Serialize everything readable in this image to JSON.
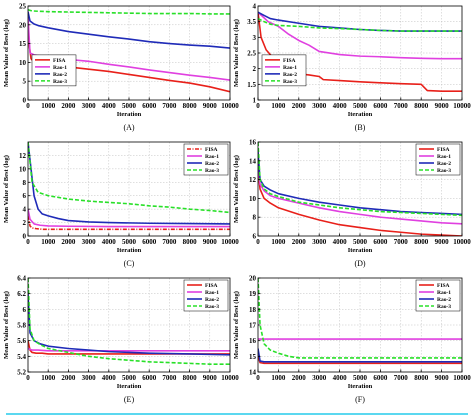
{
  "chart_data": [
    {
      "type": "line",
      "caption": "(A)",
      "xlabel": "Iteration",
      "ylabel": "Mean Value of Best (log)",
      "xlim": [
        0,
        10000
      ],
      "ylim": [
        0,
        25
      ],
      "xticks": [
        0,
        1000,
        2000,
        3000,
        4000,
        5000,
        6000,
        7000,
        8000,
        9000,
        10000
      ],
      "yticks": [
        0,
        5,
        10,
        15,
        20,
        25
      ],
      "grid": true,
      "legend_position": "left-middle",
      "series": [
        {
          "name": "FISA",
          "color": "#e8201a",
          "dash": "solid",
          "x": [
            0,
            50,
            150,
            300,
            600,
            1000,
            2000,
            3000,
            4000,
            5000,
            6000,
            7000,
            8000,
            9000,
            10000
          ],
          "y": [
            22,
            15,
            11,
            10,
            9.8,
            9.5,
            8.8,
            8.2,
            7.6,
            6.8,
            6.0,
            5.2,
            4.5,
            3.5,
            2.2
          ]
        },
        {
          "name": "Rao-1",
          "color": "#e040e0",
          "dash": "solid",
          "x": [
            0,
            100,
            300,
            600,
            1000,
            2000,
            3000,
            4000,
            5000,
            6000,
            7000,
            8000,
            9000,
            10000
          ],
          "y": [
            22,
            12.5,
            12,
            11.8,
            11.5,
            10.8,
            10.3,
            9.5,
            8.8,
            8.0,
            7.3,
            6.6,
            6.0,
            5.3
          ]
        },
        {
          "name": "Rao-2",
          "color": "#1f2bb8",
          "dash": "solid",
          "x": [
            0,
            100,
            300,
            500,
            1000,
            2000,
            3000,
            4000,
            5000,
            6000,
            7000,
            8000,
            9000,
            10000
          ],
          "y": [
            23.5,
            21,
            20.2,
            19.8,
            19.2,
            18.2,
            17.5,
            16.8,
            16.2,
            15.5,
            15.0,
            14.6,
            14.3,
            13.8
          ]
        },
        {
          "name": "Rao-3",
          "color": "#28e028",
          "dash": "dashed",
          "x": [
            0,
            200,
            500,
            1000,
            2000,
            3000,
            4000,
            5000,
            6000,
            7000,
            8000,
            9000,
            10000
          ],
          "y": [
            24,
            23.7,
            23.6,
            23.5,
            23.4,
            23.3,
            23.2,
            23.1,
            23.0,
            23.0,
            23.0,
            22.9,
            22.9
          ]
        }
      ]
    },
    {
      "type": "line",
      "caption": "(B)",
      "xlabel": "Iteration",
      "ylabel": "Mean Value of Best (log)",
      "xlim": [
        0,
        10000
      ],
      "ylim": [
        1,
        4
      ],
      "xticks": [
        0,
        1000,
        2000,
        3000,
        4000,
        5000,
        6000,
        7000,
        8000,
        9000,
        10000
      ],
      "yticks": [
        1,
        1.5,
        2,
        2.5,
        3,
        3.5,
        4
      ],
      "ytick_labels": [
        "1",
        "1.5",
        "2",
        "2.5",
        "3",
        "3.5",
        "4"
      ],
      "grid": true,
      "legend_position": "left-middle",
      "series": [
        {
          "name": "FISA",
          "color": "#e8201a",
          "dash": "solid",
          "x": [
            0,
            150,
            400,
            800,
            1200,
            1500,
            1800,
            2500,
            3000,
            3200,
            4000,
            5000,
            6000,
            7000,
            8000,
            8300,
            9000,
            10000
          ],
          "y": [
            3.8,
            3.0,
            2.6,
            2.3,
            2.05,
            1.9,
            1.85,
            1.8,
            1.75,
            1.65,
            1.62,
            1.58,
            1.55,
            1.52,
            1.5,
            1.3,
            1.28,
            1.28
          ]
        },
        {
          "name": "Rao-1",
          "color": "#e040e0",
          "dash": "solid",
          "x": [
            0,
            500,
            1000,
            1500,
            2000,
            2500,
            3000,
            4000,
            5000,
            6000,
            7000,
            8000,
            9000,
            10000
          ],
          "y": [
            3.8,
            3.5,
            3.35,
            3.1,
            2.9,
            2.75,
            2.55,
            2.45,
            2.4,
            2.38,
            2.35,
            2.33,
            2.32,
            2.32
          ]
        },
        {
          "name": "Rao-2",
          "color": "#1f2bb8",
          "dash": "solid",
          "x": [
            0,
            300,
            600,
            1000,
            2000,
            3000,
            4000,
            5000,
            6000,
            7000,
            8000,
            9000,
            10000
          ],
          "y": [
            3.8,
            3.7,
            3.6,
            3.55,
            3.45,
            3.35,
            3.3,
            3.25,
            3.22,
            3.2,
            3.2,
            3.2,
            3.2
          ]
        },
        {
          "name": "Rao-3",
          "color": "#28e028",
          "dash": "dashed",
          "x": [
            0,
            300,
            600,
            1000,
            2000,
            3000,
            4000,
            5000,
            6000,
            7000,
            8000,
            9000,
            10000
          ],
          "y": [
            3.6,
            3.5,
            3.42,
            3.38,
            3.35,
            3.3,
            3.28,
            3.25,
            3.22,
            3.2,
            3.2,
            3.2,
            3.2
          ]
        }
      ]
    },
    {
      "type": "line",
      "caption": "(C)",
      "xlabel": "Iteration",
      "ylabel": "Mean Value of Best (log)",
      "xlim": [
        0,
        10000
      ],
      "ylim": [
        0,
        14
      ],
      "xticks": [
        0,
        1000,
        2000,
        3000,
        4000,
        5000,
        6000,
        7000,
        8000,
        9000,
        10000
      ],
      "yticks": [
        0,
        2,
        4,
        6,
        8,
        10,
        12
      ],
      "grid": true,
      "legend_position": "top-right",
      "series": [
        {
          "name": "FISA",
          "color": "#e8201a",
          "dash": "dashdot",
          "x": [
            0,
            100,
            200,
            400,
            700,
            1000,
            2000,
            4000,
            6000,
            8000,
            10000
          ],
          "y": [
            3,
            1.5,
            1.2,
            1.1,
            1.0,
            1.0,
            1.0,
            1.0,
            1.0,
            1.0,
            1.0
          ]
        },
        {
          "name": "Rao-1",
          "color": "#e040e0",
          "dash": "solid",
          "x": [
            0,
            100,
            300,
            600,
            1000,
            2000,
            4000,
            6000,
            8000,
            10000
          ],
          "y": [
            4,
            2.5,
            1.8,
            1.6,
            1.5,
            1.45,
            1.4,
            1.4,
            1.4,
            1.4
          ]
        },
        {
          "name": "Rao-2",
          "color": "#1f2bb8",
          "dash": "solid",
          "x": [
            0,
            150,
            300,
            500,
            700,
            1000,
            1500,
            2000,
            3000,
            4000,
            6000,
            8000,
            10000
          ],
          "y": [
            14,
            10,
            6,
            4,
            3.3,
            3.0,
            2.6,
            2.3,
            2.1,
            2.0,
            1.9,
            1.85,
            1.8
          ]
        },
        {
          "name": "Rao-3",
          "color": "#28e028",
          "dash": "dashed",
          "x": [
            0,
            200,
            500,
            1000,
            2000,
            3000,
            4000,
            5000,
            6000,
            7000,
            8000,
            9000,
            10000
          ],
          "y": [
            14,
            8,
            6.5,
            6.0,
            5.5,
            5.2,
            5.0,
            4.8,
            4.5,
            4.3,
            4.0,
            3.8,
            3.5
          ]
        }
      ]
    },
    {
      "type": "line",
      "caption": "(D)",
      "xlabel": "Iteration",
      "ylabel": "Mean Value of Best (log)",
      "xlim": [
        0,
        10000
      ],
      "ylim": [
        6,
        16
      ],
      "xticks": [
        0,
        1000,
        2000,
        3000,
        4000,
        5000,
        6000,
        7000,
        8000,
        9000,
        10000
      ],
      "yticks": [
        6,
        8,
        10,
        12,
        14,
        16
      ],
      "grid": true,
      "legend_position": "top-right",
      "series": [
        {
          "name": "FISA",
          "color": "#e8201a",
          "dash": "solid",
          "x": [
            0,
            100,
            300,
            600,
            1000,
            2000,
            3000,
            4000,
            5000,
            6000,
            7000,
            8000,
            9000,
            10000
          ],
          "y": [
            13,
            11,
            10,
            9.5,
            9.0,
            8.3,
            7.7,
            7.2,
            6.9,
            6.6,
            6.4,
            6.2,
            6.1,
            6.0
          ]
        },
        {
          "name": "Rao-1",
          "color": "#e040e0",
          "dash": "solid",
          "x": [
            0,
            100,
            300,
            600,
            1000,
            2000,
            3000,
            4000,
            5000,
            6000,
            7000,
            8000,
            9000,
            10000
          ],
          "y": [
            14,
            11.5,
            10.8,
            10.3,
            10.0,
            9.5,
            9.0,
            8.6,
            8.3,
            8.0,
            7.8,
            7.6,
            7.4,
            7.3
          ]
        },
        {
          "name": "Rao-2",
          "color": "#1f2bb8",
          "dash": "solid",
          "x": [
            0,
            100,
            300,
            600,
            1000,
            2000,
            3000,
            4000,
            5000,
            6000,
            7000,
            8000,
            9000,
            10000
          ],
          "y": [
            15,
            12,
            11.3,
            10.9,
            10.5,
            10.0,
            9.6,
            9.3,
            9.0,
            8.8,
            8.6,
            8.5,
            8.4,
            8.3
          ]
        },
        {
          "name": "Rao-3",
          "color": "#28e028",
          "dash": "dashed",
          "x": [
            0,
            100,
            300,
            600,
            1000,
            2000,
            3000,
            4000,
            5000,
            6000,
            7000,
            8000,
            9000,
            10000
          ],
          "y": [
            16,
            12,
            11.0,
            10.5,
            10.2,
            9.6,
            9.3,
            9.0,
            8.8,
            8.6,
            8.5,
            8.4,
            8.3,
            8.2
          ]
        }
      ]
    },
    {
      "type": "line",
      "caption": "(E)",
      "xlabel": "Iteration",
      "ylabel": "Mean Value of Best (log)",
      "xlim": [
        0,
        10000
      ],
      "ylim": [
        5.2,
        6.4
      ],
      "xticks": [
        0,
        1000,
        2000,
        3000,
        4000,
        5000,
        6000,
        7000,
        8000,
        9000,
        10000
      ],
      "yticks": [
        5.2,
        5.4,
        5.6,
        5.8,
        6.0,
        6.2,
        6.4
      ],
      "ytick_labels": [
        "5.2",
        "5.4",
        "5.6",
        "5.8",
        "6",
        "6.2",
        "6.4"
      ],
      "grid": true,
      "legend_position": "top-right",
      "series": [
        {
          "name": "FISA",
          "color": "#e8201a",
          "dash": "solid",
          "x": [
            0,
            100,
            200,
            400,
            700,
            1000,
            2000,
            4000,
            6000,
            8000,
            10000
          ],
          "y": [
            5.6,
            5.48,
            5.45,
            5.44,
            5.44,
            5.43,
            5.43,
            5.43,
            5.43,
            5.43,
            5.43
          ]
        },
        {
          "name": "Rao-1",
          "color": "#e040e0",
          "dash": "solid",
          "x": [
            0,
            200,
            500,
            1000,
            2000,
            4000,
            6000,
            8000,
            10000
          ],
          "y": [
            5.5,
            5.48,
            5.48,
            5.47,
            5.47,
            5.47,
            5.47,
            5.47,
            5.47
          ]
        },
        {
          "name": "Rao-2",
          "color": "#1f2bb8",
          "dash": "solid",
          "x": [
            0,
            100,
            300,
            600,
            1000,
            2000,
            3000,
            4000,
            6000,
            8000,
            10000
          ],
          "y": [
            6.2,
            5.7,
            5.6,
            5.56,
            5.53,
            5.5,
            5.48,
            5.46,
            5.44,
            5.43,
            5.42
          ]
        },
        {
          "name": "Rao-3",
          "color": "#28e028",
          "dash": "dashed",
          "x": [
            0,
            100,
            300,
            600,
            1000,
            2000,
            3000,
            4000,
            5000,
            6000,
            7000,
            8000,
            9000,
            10000
          ],
          "y": [
            6.4,
            5.75,
            5.6,
            5.55,
            5.5,
            5.45,
            5.4,
            5.37,
            5.35,
            5.33,
            5.32,
            5.31,
            5.3,
            5.3
          ]
        }
      ]
    },
    {
      "type": "line",
      "caption": "(F)",
      "xlabel": "Iteration",
      "ylabel": "Mean Value of Best (log)",
      "xlim": [
        0,
        10000
      ],
      "ylim": [
        14,
        20
      ],
      "xticks": [
        0,
        1000,
        2000,
        3000,
        4000,
        5000,
        6000,
        7000,
        8000,
        9000,
        10000
      ],
      "yticks": [
        14,
        15,
        16,
        17,
        18,
        19,
        20
      ],
      "grid": true,
      "legend_position": "top-right",
      "series": [
        {
          "name": "FISA",
          "color": "#e8201a",
          "dash": "solid",
          "x": [
            0,
            100,
            300,
            1000,
            2000,
            4000,
            6000,
            8000,
            10000
          ],
          "y": [
            15.0,
            14.6,
            14.55,
            14.55,
            14.55,
            14.55,
            14.55,
            14.55,
            14.55
          ]
        },
        {
          "name": "Rao-1",
          "color": "#e040e0",
          "dash": "solid",
          "x": [
            0,
            200,
            1000,
            4000,
            8000,
            10000
          ],
          "y": [
            16.1,
            16.1,
            16.1,
            16.1,
            16.1,
            16.1
          ]
        },
        {
          "name": "Rao-2",
          "color": "#1f2bb8",
          "dash": "solid",
          "x": [
            0,
            100,
            300,
            1000,
            2000,
            4000,
            6000,
            8000,
            10000
          ],
          "y": [
            15.5,
            14.7,
            14.65,
            14.65,
            14.65,
            14.65,
            14.65,
            14.65,
            14.65
          ]
        },
        {
          "name": "Rao-3",
          "color": "#28e028",
          "dash": "dashed",
          "x": [
            0,
            100,
            300,
            600,
            1000,
            1500,
            2000,
            4000,
            6000,
            8000,
            10000
          ],
          "y": [
            20,
            17,
            15.8,
            15.4,
            15.2,
            15.0,
            14.9,
            14.9,
            14.9,
            14.9,
            14.9
          ]
        }
      ]
    }
  ]
}
